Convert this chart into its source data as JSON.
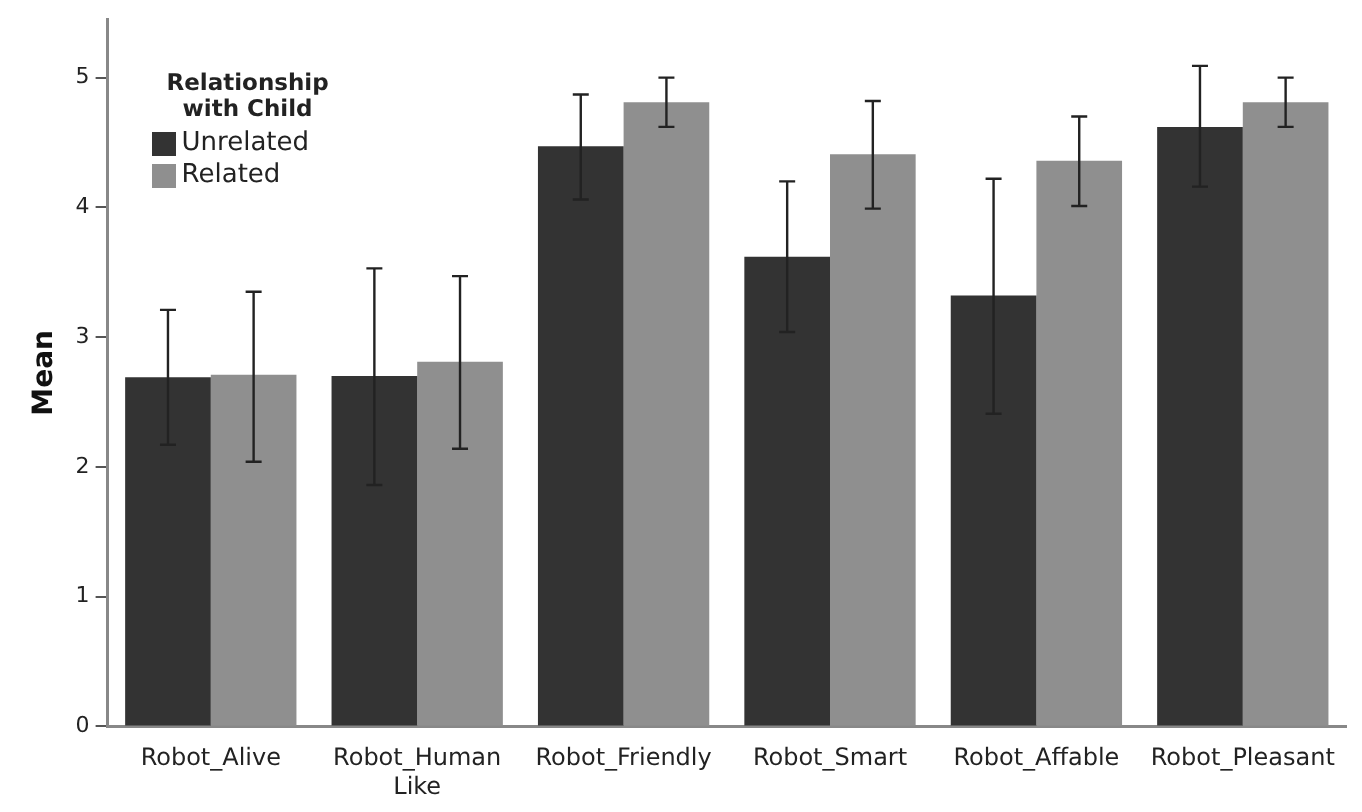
{
  "chart_data": {
    "type": "bar",
    "ylabel": "Mean",
    "legend_title": "Relationship with Child",
    "legend": "top left",
    "grid": false,
    "categories": [
      "Robot_Alive",
      "Robot_Human Like",
      "Robot_Friendly",
      "Robot_Smart",
      "Robot_Affable",
      "Robot_Pleasant"
    ],
    "ylim": [
      0,
      5.45
    ],
    "yticks": [
      0,
      1,
      2,
      3,
      4,
      5
    ],
    "series": [
      {
        "name": "Unrelated",
        "color": "#333333",
        "values": [
          2.69,
          2.7,
          4.47,
          3.62,
          3.32,
          4.62
        ],
        "errors": [
          [
            2.17,
            3.21
          ],
          [
            1.86,
            3.53
          ],
          [
            4.06,
            4.87
          ],
          [
            3.04,
            4.2
          ],
          [
            2.41,
            4.22
          ],
          [
            4.16,
            5.09
          ]
        ]
      },
      {
        "name": "Related",
        "color": "#8f8f8f",
        "values": [
          2.71,
          2.81,
          4.81,
          4.41,
          4.36,
          4.81
        ],
        "errors": [
          [
            2.04,
            3.35
          ],
          [
            2.14,
            3.47
          ],
          [
            4.62,
            5.0
          ],
          [
            3.99,
            4.82
          ],
          [
            4.01,
            4.7
          ],
          [
            4.62,
            5.0
          ]
        ]
      }
    ]
  }
}
